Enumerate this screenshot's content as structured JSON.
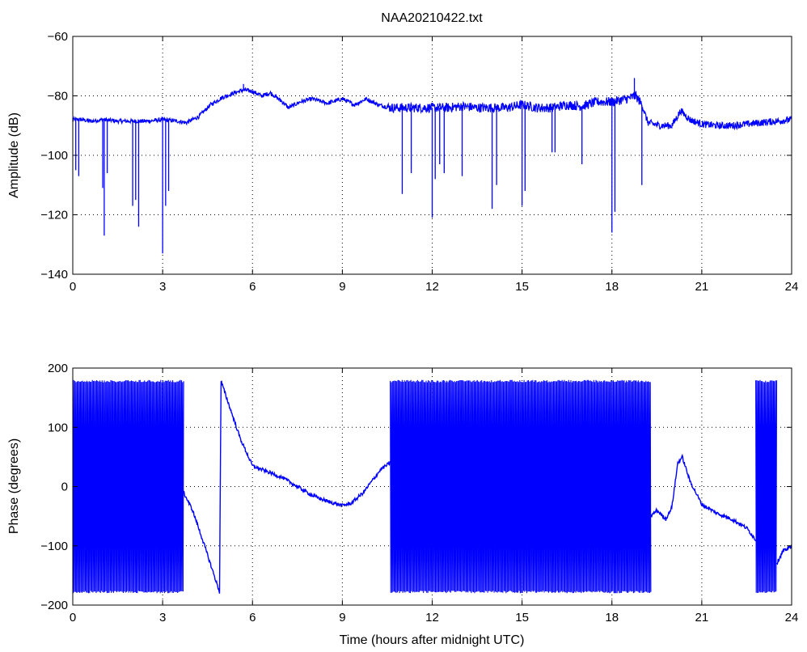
{
  "chart_data": [
    {
      "type": "line",
      "title": "NAA20210422.txt",
      "xlabel": "",
      "ylabel": "Amplitude (dB)",
      "xlim": [
        0,
        24
      ],
      "ylim": [
        -140,
        -60
      ],
      "xticks": [
        "0",
        "3",
        "6",
        "9",
        "12",
        "15",
        "18",
        "21",
        "24"
      ],
      "yticks": [
        "−60",
        "−80",
        "−100",
        "−120",
        "−140"
      ],
      "grid": true,
      "line_color": "#0000ff",
      "series": [
        {
          "x": [
            0,
            0.3,
            0.6,
            1.0,
            1.5,
            2.0,
            2.5,
            3.0,
            3.5,
            3.8,
            4.2,
            4.6,
            5.0,
            5.4,
            5.7,
            6.0,
            6.3,
            6.6,
            7.0,
            7.2,
            7.6,
            8.0,
            8.5,
            9.0,
            9.4,
            9.8,
            10.2,
            10.6,
            11.0,
            11.5,
            12.0,
            12.5,
            13.0,
            13.5,
            14.0,
            14.5,
            15.0,
            15.5,
            16.0,
            16.5,
            17.0,
            17.5,
            18.0,
            18.5,
            18.8,
            19.0,
            19.2,
            19.6,
            20.0,
            20.3,
            20.6,
            21.0,
            21.5,
            22.0,
            22.5,
            23.0,
            23.5,
            24.0
          ],
          "y": [
            -88,
            -88,
            -88.5,
            -88,
            -88.5,
            -88.5,
            -88.5,
            -88,
            -88.5,
            -89,
            -87,
            -83,
            -80.5,
            -79,
            -78,
            -78.5,
            -80,
            -79,
            -82,
            -84,
            -82,
            -81,
            -82.5,
            -81,
            -83,
            -81,
            -83,
            -84,
            -84,
            -84,
            -84,
            -84,
            -83.5,
            -84,
            -84,
            -84,
            -83,
            -84,
            -84,
            -83,
            -83.5,
            -82,
            -82,
            -81,
            -80,
            -83,
            -89,
            -90,
            -90,
            -85,
            -88,
            -89.5,
            -90,
            -90,
            -89.5,
            -89,
            -88.5,
            -88
          ]
        }
      ],
      "dips": [
        {
          "x": 0.1,
          "y": -105
        },
        {
          "x": 0.2,
          "y": -107
        },
        {
          "x": 1.0,
          "y": -111
        },
        {
          "x": 1.05,
          "y": -127
        },
        {
          "x": 1.15,
          "y": -106
        },
        {
          "x": 2.0,
          "y": -117
        },
        {
          "x": 2.1,
          "y": -115
        },
        {
          "x": 2.2,
          "y": -124
        },
        {
          "x": 3.0,
          "y": -133
        },
        {
          "x": 3.1,
          "y": -117
        },
        {
          "x": 3.2,
          "y": -112
        },
        {
          "x": 11.0,
          "y": -113
        },
        {
          "x": 11.3,
          "y": -106
        },
        {
          "x": 12.0,
          "y": -121
        },
        {
          "x": 12.1,
          "y": -108
        },
        {
          "x": 12.25,
          "y": -103
        },
        {
          "x": 12.4,
          "y": -106
        },
        {
          "x": 13.0,
          "y": -107
        },
        {
          "x": 14.0,
          "y": -118
        },
        {
          "x": 14.15,
          "y": -110
        },
        {
          "x": 15.0,
          "y": -117
        },
        {
          "x": 15.1,
          "y": -112
        },
        {
          "x": 16.0,
          "y": -99
        },
        {
          "x": 16.1,
          "y": -99
        },
        {
          "x": 17.0,
          "y": -103
        },
        {
          "x": 18.0,
          "y": -126
        },
        {
          "x": 18.1,
          "y": -119
        },
        {
          "x": 19.0,
          "y": -110
        }
      ],
      "spikes": [
        {
          "x": 5.7,
          "y": -76
        },
        {
          "x": 18.75,
          "y": -74
        }
      ]
    },
    {
      "type": "line",
      "title": "",
      "xlabel": "Time (hours after midnight UTC)",
      "ylabel": "Phase (degrees)",
      "xlim": [
        0,
        24
      ],
      "ylim": [
        -200,
        200
      ],
      "xticks": [
        "0",
        "3",
        "6",
        "9",
        "12",
        "15",
        "18",
        "21",
        "24"
      ],
      "yticks": [
        "200",
        "100",
        "0",
        "−100",
        "−200"
      ],
      "grid": true,
      "line_color": "#0000ff",
      "wrapped_segments": [
        {
          "x_start": 0,
          "x_end": 3.7,
          "y_min": -180,
          "y_max": 180
        },
        {
          "x_start": 10.6,
          "x_end": 19.3,
          "y_min": -180,
          "y_max": 180
        },
        {
          "x_start": 22.8,
          "x_end": 23.5,
          "y_min": -180,
          "y_max": 180
        }
      ],
      "series": [
        {
          "x": [
            3.7,
            4.0,
            4.4,
            4.9,
            4.95,
            5.2,
            5.6,
            6.0,
            6.5,
            7.0,
            7.5,
            8.0,
            8.5,
            9.0,
            9.3,
            9.7,
            10.0,
            10.3,
            10.6
          ],
          "y": [
            -10,
            -40,
            -100,
            -178,
            178,
            140,
            80,
            35,
            25,
            15,
            0,
            -15,
            -25,
            -32,
            -28,
            -10,
            10,
            30,
            40
          ]
        },
        {
          "x": [
            19.3,
            19.5,
            19.8,
            20.0,
            20.2,
            20.35,
            20.6,
            21.0,
            21.5,
            22.0,
            22.5,
            22.8
          ],
          "y": [
            -50,
            -40,
            -55,
            -35,
            40,
            50,
            10,
            -30,
            -45,
            -55,
            -70,
            -90
          ]
        },
        {
          "x": [
            23.5,
            23.7,
            24.0
          ],
          "y": [
            -130,
            -110,
            -100
          ]
        }
      ]
    }
  ]
}
